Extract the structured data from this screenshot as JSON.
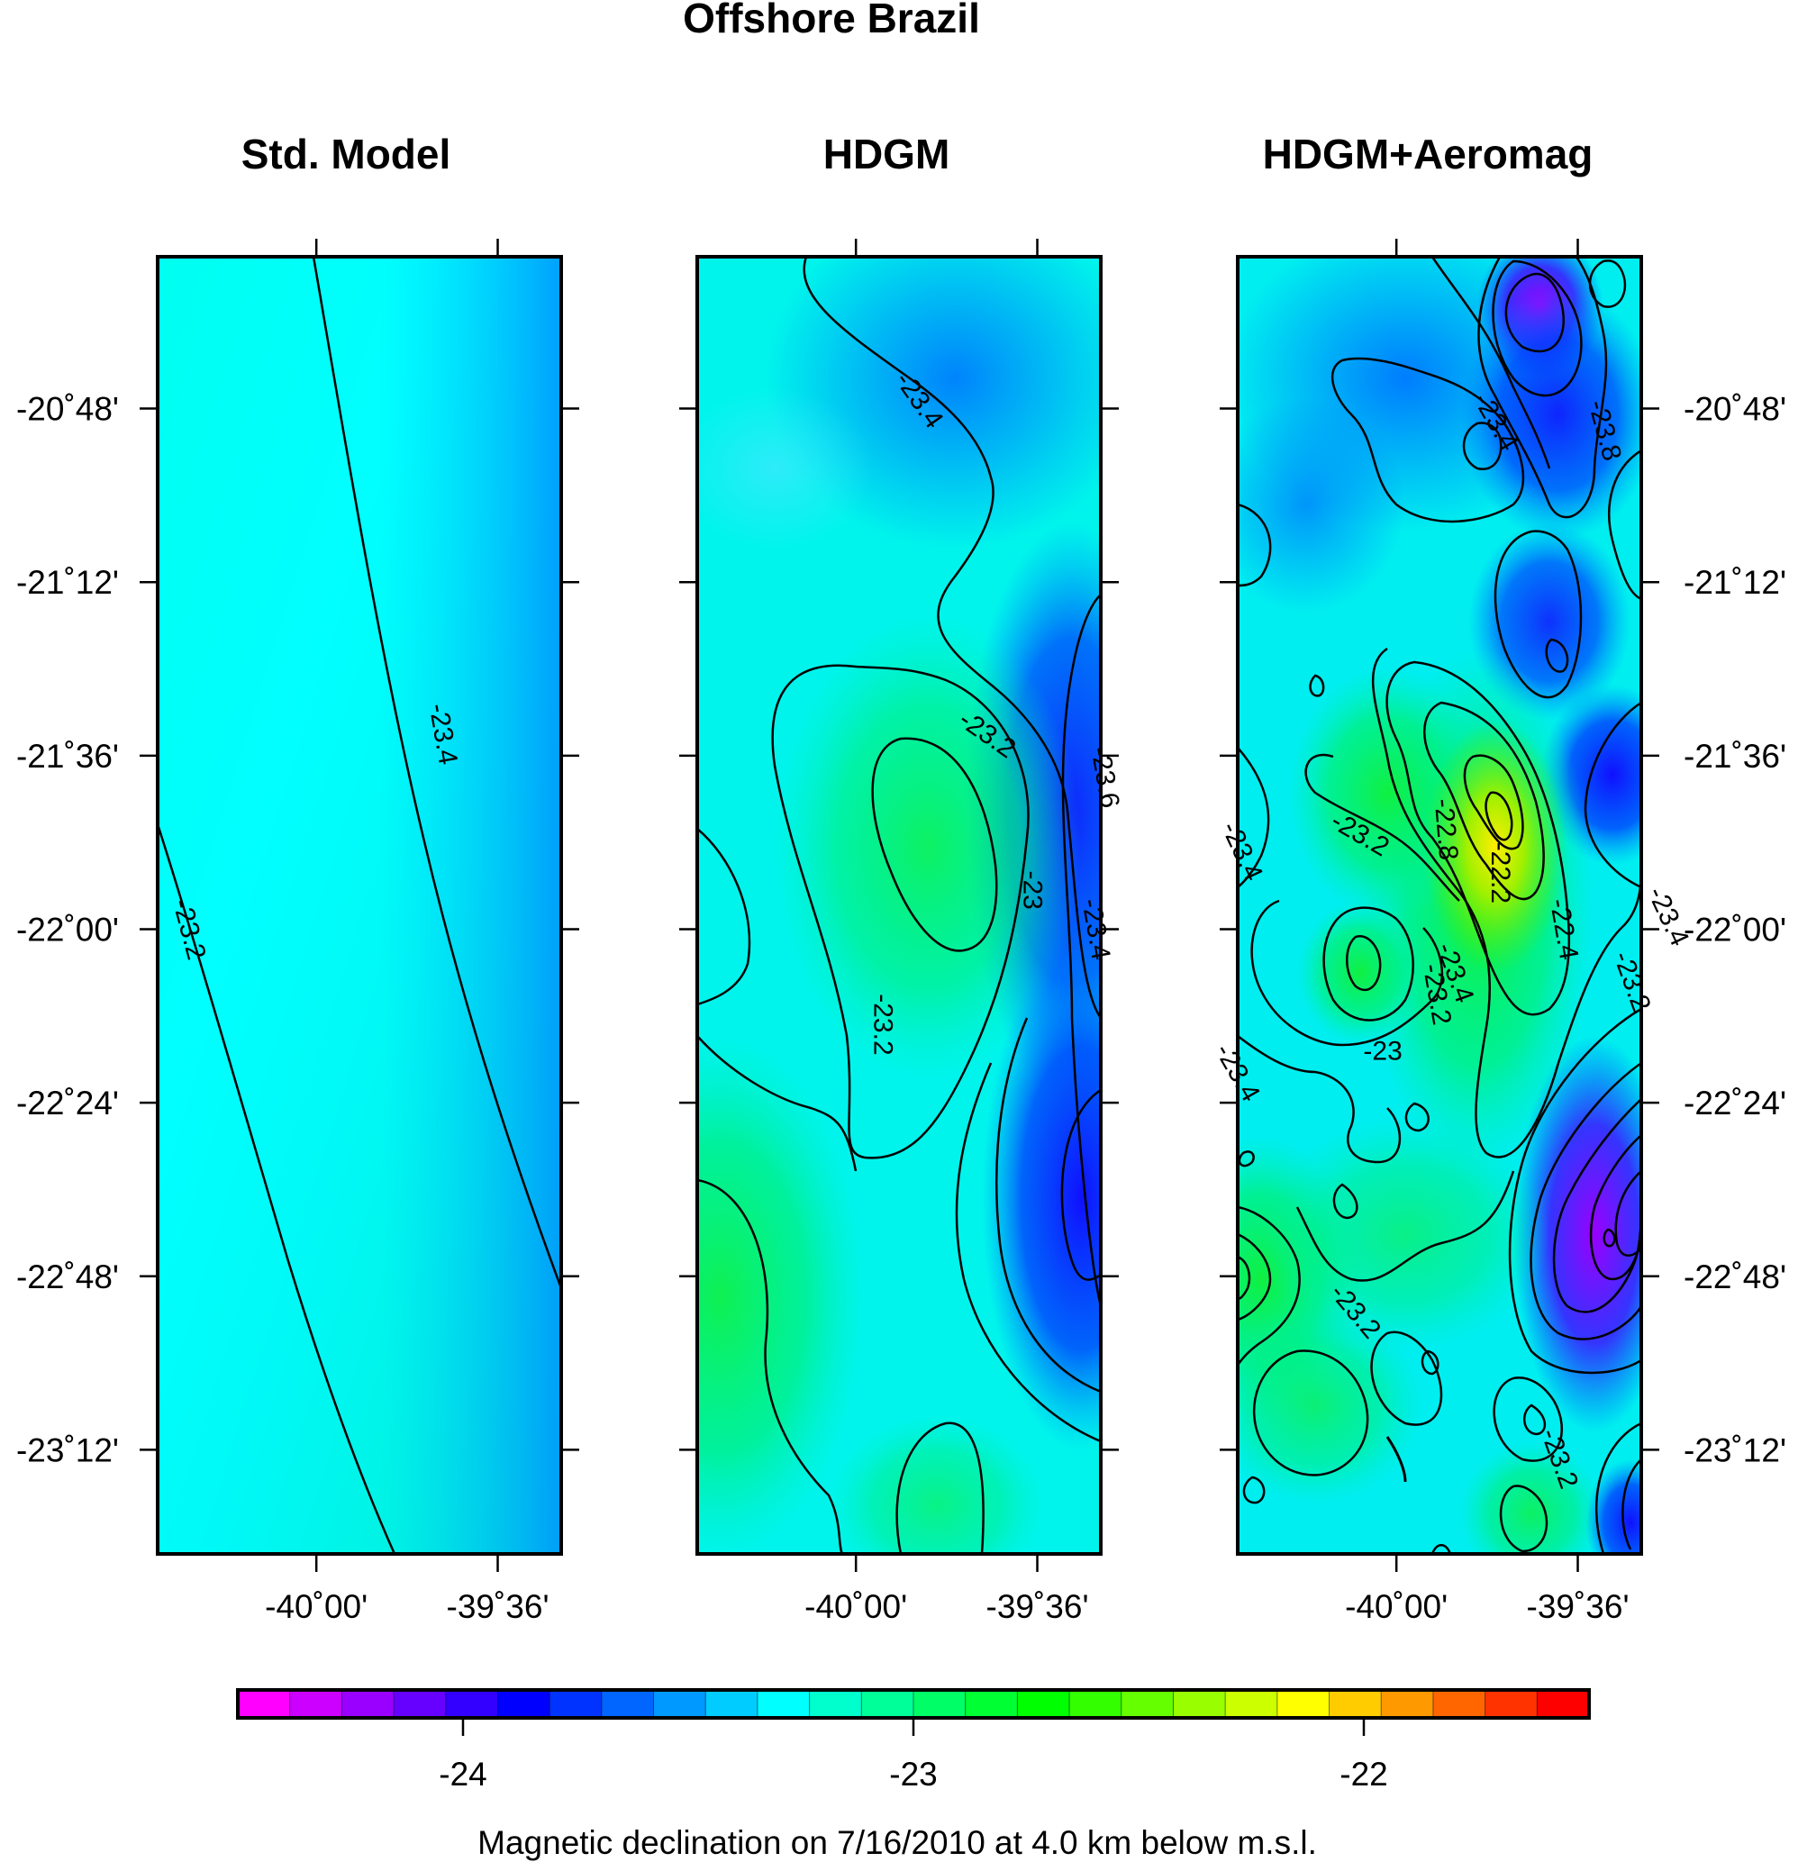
{
  "chart_data": {
    "type": "heatmap",
    "title": "Offshore Brazil",
    "caption": "Magnetic declination on 7/16/2010 at 4.0 km below m.s.l.",
    "panels": [
      {
        "title": "Std. Model",
        "contour_labels": [
          {
            "text": "-23.4",
            "lon": -39.72,
            "lat": -21.55,
            "rot": 80
          },
          {
            "text": "-23.2",
            "lon": -40.28,
            "lat": -22.0,
            "rot": 75
          }
        ]
      },
      {
        "title": "HDGM",
        "contour_labels": [
          {
            "text": "-23.4",
            "lon": -39.86,
            "lat": -20.78,
            "rot": 55
          },
          {
            "text": "-23.2",
            "lon": -39.71,
            "lat": -21.55,
            "rot": 35
          },
          {
            "text": "-23",
            "lon": -39.61,
            "lat": -21.91,
            "rot": 90
          },
          {
            "text": "-23.6",
            "lon": -39.45,
            "lat": -21.65,
            "rot": 80
          },
          {
            "text": "-23.4",
            "lon": -39.47,
            "lat": -22.0,
            "rot": 80
          },
          {
            "text": "-23.2",
            "lon": -39.94,
            "lat": -22.22,
            "rot": 90
          }
        ]
      },
      {
        "title": "HDGM+Aeromag",
        "contour_labels": [
          {
            "text": "-23.4",
            "lon": -39.78,
            "lat": -20.83,
            "rot": 60
          },
          {
            "text": "-23.8",
            "lon": -39.54,
            "lat": -20.85,
            "rot": 75
          },
          {
            "text": "-23.2",
            "lon": -40.08,
            "lat": -21.78,
            "rot": 30
          },
          {
            "text": "-23.4",
            "lon": -40.34,
            "lat": -21.82,
            "rot": 65
          },
          {
            "text": "-22.8",
            "lon": -39.89,
            "lat": -21.77,
            "rot": 85
          },
          {
            "text": "-22.2",
            "lon": -39.77,
            "lat": -21.87,
            "rot": 90
          },
          {
            "text": "-22.4",
            "lon": -39.63,
            "lat": -22.0,
            "rot": 80
          },
          {
            "text": "-23.4",
            "lon": -39.4,
            "lat": -21.97,
            "rot": 65
          },
          {
            "text": "-23.2",
            "lon": -39.48,
            "lat": -22.12,
            "rot": 70
          },
          {
            "text": "-23.4",
            "lon": -39.87,
            "lat": -22.1,
            "rot": 70
          },
          {
            "text": "-23.2",
            "lon": -39.91,
            "lat": -22.15,
            "rot": 80
          },
          {
            "text": "-23",
            "lon": -40.03,
            "lat": -22.28,
            "rot": 0
          },
          {
            "text": "-23.4",
            "lon": -40.35,
            "lat": -22.33,
            "rot": 60
          },
          {
            "text": "-23.2",
            "lon": -40.09,
            "lat": -22.88,
            "rot": 50
          },
          {
            "text": "-23.2",
            "lon": -39.64,
            "lat": -23.22,
            "rot": 70
          }
        ]
      }
    ],
    "x_ticks": [
      "-40˚00'",
      "-39˚36'"
    ],
    "y_ticks": [
      "-20˚48'",
      "-21˚12'",
      "-21˚36'",
      "-22˚00'",
      "-22˚24'",
      "-22˚48'",
      "-23˚12'"
    ],
    "colorbar": {
      "ticks": [
        "-24",
        "-23",
        "-22"
      ],
      "range": [
        -24.5,
        -21.5
      ],
      "colors": [
        "#ff00ff",
        "#cc00ff",
        "#9900ff",
        "#6600ff",
        "#3300ff",
        "#0000ff",
        "#0033ff",
        "#0066ff",
        "#0099ff",
        "#00ccff",
        "#00ffff",
        "#00ffcc",
        "#00ff99",
        "#00ff66",
        "#00ff33",
        "#00ff00",
        "#33ff00",
        "#66ff00",
        "#99ff00",
        "#ccff00",
        "#ffff00",
        "#ffcc00",
        "#ff9900",
        "#ff6600",
        "#ff3300",
        "#ff0000"
      ]
    }
  }
}
